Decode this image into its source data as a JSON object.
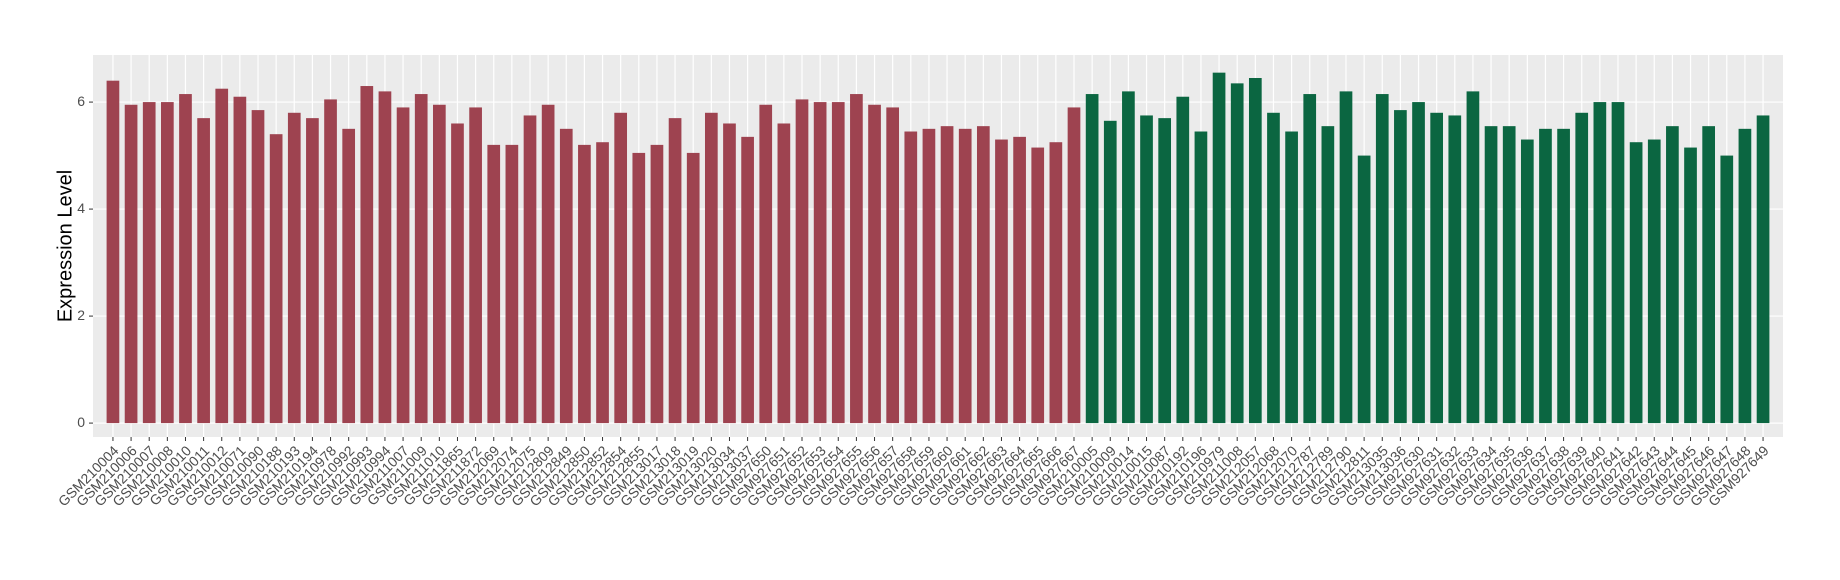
{
  "chart_data": {
    "type": "bar",
    "y_label": "Expression Level",
    "categories": [
      "GSM210004",
      "GSM210006",
      "GSM210007",
      "GSM210008",
      "GSM210010",
      "GSM210011",
      "GSM210012",
      "GSM210071",
      "GSM210090",
      "GSM210188",
      "GSM210193",
      "GSM210194",
      "GSM210978",
      "GSM210992",
      "GSM210993",
      "GSM210994",
      "GSM211007",
      "GSM211009",
      "GSM211010",
      "GSM211865",
      "GSM211872",
      "GSM212069",
      "GSM212074",
      "GSM212075",
      "GSM212809",
      "GSM212849",
      "GSM212850",
      "GSM212852",
      "GSM212854",
      "GSM212855",
      "GSM213017",
      "GSM213018",
      "GSM213019",
      "GSM213020",
      "GSM213034",
      "GSM213037",
      "GSM927650",
      "GSM927651",
      "GSM927652",
      "GSM927653",
      "GSM927654",
      "GSM927655",
      "GSM927656",
      "GSM927657",
      "GSM927658",
      "GSM927659",
      "GSM927660",
      "GSM927661",
      "GSM927662",
      "GSM927663",
      "GSM927664",
      "GSM927665",
      "GSM927666",
      "GSM927667",
      "GSM210005",
      "GSM210009",
      "GSM210014",
      "GSM210015",
      "GSM210087",
      "GSM210192",
      "GSM210196",
      "GSM210979",
      "GSM211008",
      "GSM212057",
      "GSM212068",
      "GSM212070",
      "GSM212787",
      "GSM212789",
      "GSM212790",
      "GSM212811",
      "GSM213035",
      "GSM213036",
      "GSM927630",
      "GSM927631",
      "GSM927632",
      "GSM927633",
      "GSM927634",
      "GSM927635",
      "GSM927636",
      "GSM927637",
      "GSM927638",
      "GSM927639",
      "GSM927640",
      "GSM927641",
      "GSM927642",
      "GSM927643",
      "GSM927644",
      "GSM927645",
      "GSM927646",
      "GSM927647",
      "GSM927648",
      "GSM927649"
    ],
    "values": [
      6.4,
      5.95,
      6.0,
      6.0,
      6.15,
      5.7,
      6.25,
      6.1,
      5.85,
      5.4,
      5.8,
      5.7,
      6.05,
      5.5,
      6.3,
      6.2,
      5.9,
      6.15,
      5.95,
      5.6,
      5.9,
      5.2,
      5.2,
      5.75,
      5.95,
      5.5,
      5.2,
      5.25,
      5.8,
      5.05,
      5.2,
      5.7,
      5.05,
      5.8,
      5.6,
      5.35,
      5.95,
      5.6,
      6.05,
      6.0,
      6.0,
      6.15,
      5.95,
      5.9,
      5.45,
      5.5,
      5.55,
      5.5,
      5.55,
      5.3,
      5.35,
      5.15,
      5.25,
      5.9,
      6.15,
      5.65,
      6.2,
      5.75,
      5.7,
      6.1,
      5.45,
      6.55,
      6.35,
      6.45,
      5.8,
      5.45,
      6.15,
      5.55,
      6.2,
      5.0,
      6.15,
      5.85,
      6.0,
      5.8,
      5.75,
      6.2,
      5.55,
      5.55,
      5.3,
      5.5,
      5.5,
      5.8,
      6.0,
      6.0,
      5.25,
      5.3,
      5.55,
      5.15,
      5.55,
      5.0,
      5.5,
      5.75
    ],
    "colors": [
      "#9e4350",
      "#9e4350",
      "#9e4350",
      "#9e4350",
      "#9e4350",
      "#9e4350",
      "#9e4350",
      "#9e4350",
      "#9e4350",
      "#9e4350",
      "#9e4350",
      "#9e4350",
      "#9e4350",
      "#9e4350",
      "#9e4350",
      "#9e4350",
      "#9e4350",
      "#9e4350",
      "#9e4350",
      "#9e4350",
      "#9e4350",
      "#9e4350",
      "#9e4350",
      "#9e4350",
      "#9e4350",
      "#9e4350",
      "#9e4350",
      "#9e4350",
      "#9e4350",
      "#9e4350",
      "#9e4350",
      "#9e4350",
      "#9e4350",
      "#9e4350",
      "#9e4350",
      "#9e4350",
      "#9e4350",
      "#9e4350",
      "#9e4350",
      "#9e4350",
      "#9e4350",
      "#9e4350",
      "#9e4350",
      "#9e4350",
      "#9e4350",
      "#9e4350",
      "#9e4350",
      "#9e4350",
      "#9e4350",
      "#9e4350",
      "#9e4350",
      "#9e4350",
      "#9e4350",
      "#9e4350",
      "#0b6641",
      "#0b6641",
      "#0b6641",
      "#0b6641",
      "#0b6641",
      "#0b6641",
      "#0b6641",
      "#0b6641",
      "#0b6641",
      "#0b6641",
      "#0b6641",
      "#0b6641",
      "#0b6641",
      "#0b6641",
      "#0b6641",
      "#0b6641",
      "#0b6641",
      "#0b6641",
      "#0b6641",
      "#0b6641",
      "#0b6641",
      "#0b6641",
      "#0b6641",
      "#0b6641",
      "#0b6641",
      "#0b6641",
      "#0b6641",
      "#0b6641",
      "#0b6641",
      "#0b6641",
      "#0b6641",
      "#0b6641",
      "#0b6641",
      "#0b6641",
      "#0b6641",
      "#0b6641",
      "#0b6641",
      "#0b6641"
    ],
    "ylim": [
      -0.26,
      6.88
    ],
    "yticks": [
      0,
      2,
      4,
      6
    ],
    "grid": true
  }
}
